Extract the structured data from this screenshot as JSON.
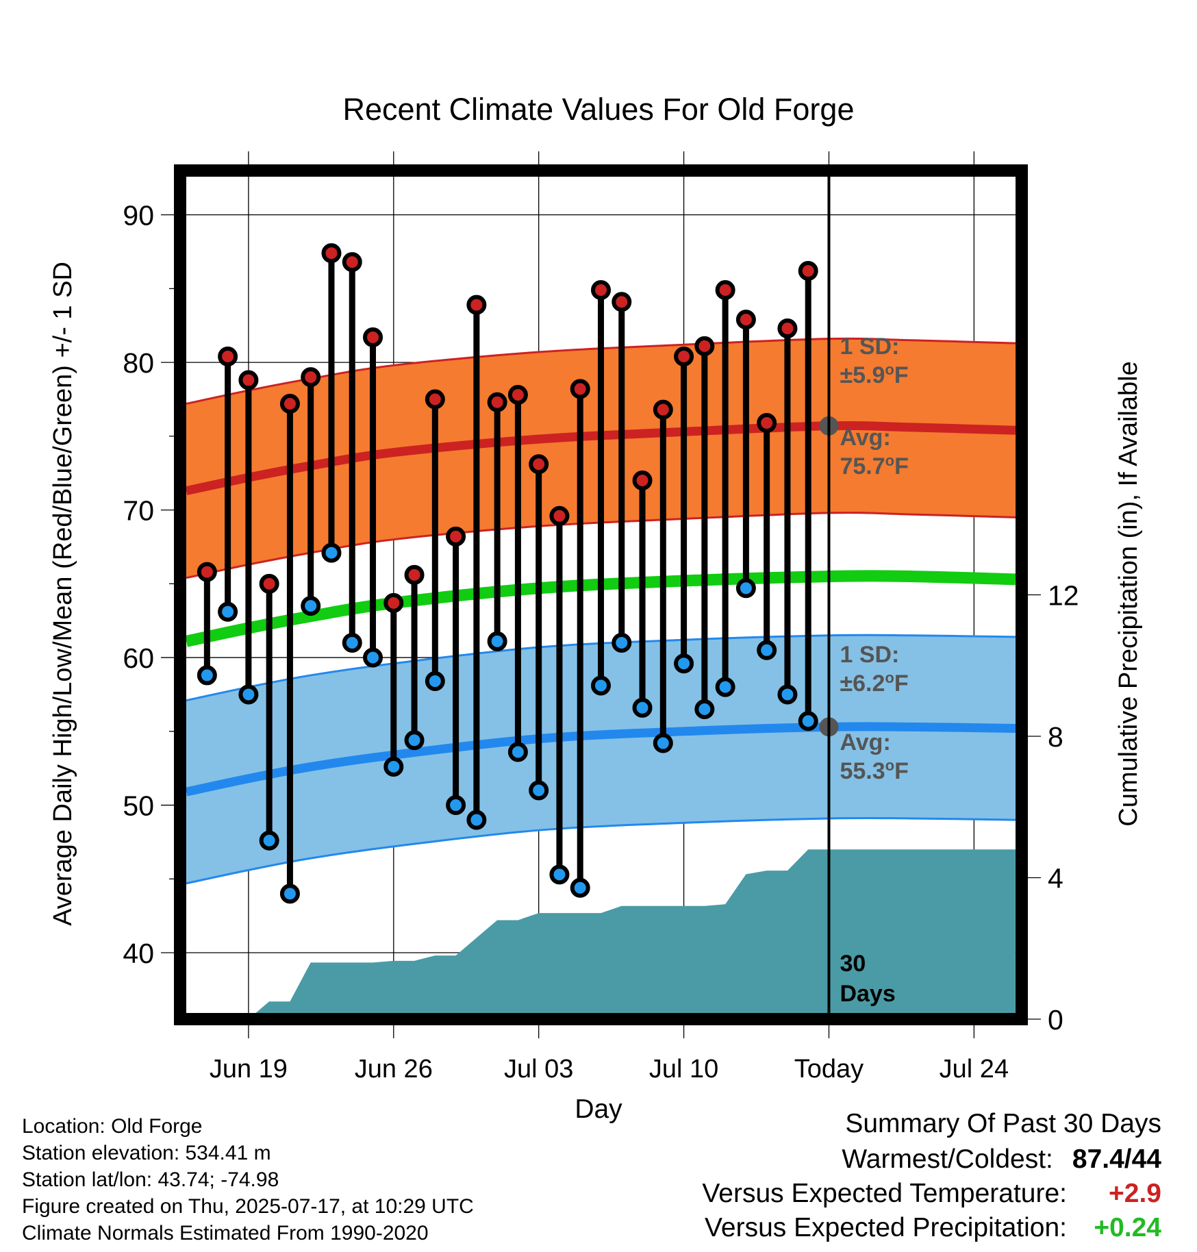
{
  "chart_data": {
    "type": "line",
    "title": "Recent Climate Values For Old Forge",
    "xlabel": "Day",
    "ylabel": "Average Daily High/Low/Mean (Red/Blue/Green) +/- 1 SD",
    "y2label": "Cumulative Precipitation (in), If Available",
    "ylim": [
      35.5,
      93
    ],
    "y2lim": [
      0,
      24
    ],
    "yticks": [
      "40",
      "50",
      "60",
      "70",
      "80",
      "90"
    ],
    "y2ticks": [
      "0",
      "4",
      "8",
      "12"
    ],
    "xlim": [
      -3.3,
      37.3
    ],
    "xticks": [
      {
        "day": 0,
        "label": "Jun 19"
      },
      {
        "day": 7,
        "label": "Jun 26"
      },
      {
        "day": 14,
        "label": "Jul 03"
      },
      {
        "day": 21,
        "label": "Jul 10"
      },
      {
        "day": 28,
        "label": "Today"
      },
      {
        "day": 35,
        "label": "Jul 24"
      }
    ],
    "grid": true,
    "days": [
      -2,
      -1,
      0,
      1,
      2,
      3,
      4,
      5,
      6,
      7,
      8,
      9,
      10,
      11,
      12,
      13,
      14,
      15,
      16,
      17,
      18,
      19,
      20,
      21,
      22,
      23,
      24,
      25,
      26,
      27
    ],
    "series": [
      {
        "name": "High",
        "color": "#cc2222",
        "values": [
          65.8,
          80.4,
          78.8,
          65.0,
          77.2,
          79.0,
          87.4,
          86.8,
          81.7,
          63.7,
          65.6,
          77.5,
          68.2,
          83.9,
          77.3,
          77.8,
          73.1,
          69.6,
          78.2,
          84.9,
          84.1,
          72.0,
          76.8,
          80.4,
          81.1,
          84.9,
          82.9,
          75.9,
          82.3,
          86.2
        ]
      },
      {
        "name": "Low",
        "color": "#2299ee",
        "values": [
          58.8,
          63.1,
          57.5,
          47.6,
          44.0,
          63.5,
          67.1,
          61.0,
          60.0,
          52.6,
          54.4,
          58.4,
          50.0,
          49.0,
          61.1,
          53.6,
          51.0,
          45.3,
          44.4,
          58.1,
          61.0,
          56.6,
          54.2,
          59.6,
          56.5,
          58.0,
          64.7,
          60.5,
          57.5,
          55.7
        ]
      }
    ],
    "normals": {
      "days": [
        -3,
        0,
        3,
        7,
        14,
        21,
        28,
        32,
        37
      ],
      "high_avg": [
        71.3,
        72.2,
        73.0,
        73.9,
        74.8,
        75.3,
        75.7,
        75.6,
        75.4
      ],
      "high_sd": 5.9,
      "low_avg": [
        50.9,
        51.8,
        52.6,
        53.4,
        54.5,
        55.0,
        55.3,
        55.3,
        55.2
      ],
      "low_sd": 6.2,
      "mean_avg": [
        61.1,
        62.0,
        62.8,
        63.7,
        64.7,
        65.2,
        65.5,
        65.5,
        65.3
      ],
      "high_fill": "#f47b30",
      "high_line": "#cc2222",
      "low_fill": "#85c1e6",
      "low_line": "#2288ee",
      "mean_line": "#11cc11"
    },
    "precip": {
      "color": "#4a9ba6",
      "days": [
        -3,
        0,
        1,
        2,
        3,
        4,
        5,
        6,
        7,
        8,
        9,
        10,
        11,
        12,
        13,
        14,
        15,
        16,
        17,
        18,
        19,
        20,
        21,
        22,
        23,
        24,
        25,
        26,
        27,
        28,
        37
      ],
      "values": [
        0,
        0,
        0.5,
        0.5,
        1.6,
        1.6,
        1.6,
        1.6,
        1.65,
        1.65,
        1.8,
        1.8,
        2.3,
        2.8,
        2.8,
        3.0,
        3.0,
        3.0,
        3.0,
        3.2,
        3.2,
        3.2,
        3.2,
        3.2,
        3.25,
        4.1,
        4.2,
        4.2,
        4.8,
        4.8,
        4.8
      ]
    },
    "annotations": {
      "high_sd_label": "1 SD:",
      "high_sd_value": "±5.9",
      "high_avg_label": "Avg:",
      "high_avg_value": "75.7",
      "low_sd_label": "1 SD:",
      "low_sd_value": "±6.2",
      "low_avg_label": "Avg:",
      "low_avg_value": "55.3",
      "unit": "°F",
      "today_line_1": "30",
      "today_line_2": "Days"
    }
  },
  "info": {
    "location": "Location: Old Forge",
    "elevation": "Station elevation: 534.41 m",
    "latlon": "Station lat/lon: 43.74; -74.98",
    "created": "Figure created on Thu, 2025-07-17, at 10:29 UTC",
    "normals": "Climate Normals Estimated From 1990-2020"
  },
  "summary": {
    "title": "Summary Of Past 30 Days",
    "warm_label": "Warmest/Coldest:",
    "warm_value": "87.4/44",
    "temp_label": "Versus Expected Temperature:",
    "temp_value": "+2.9",
    "temp_color": "#cc2222",
    "precip_label": "Versus Expected Precipitation:",
    "precip_value": "+0.24",
    "precip_color": "#22bb22"
  }
}
